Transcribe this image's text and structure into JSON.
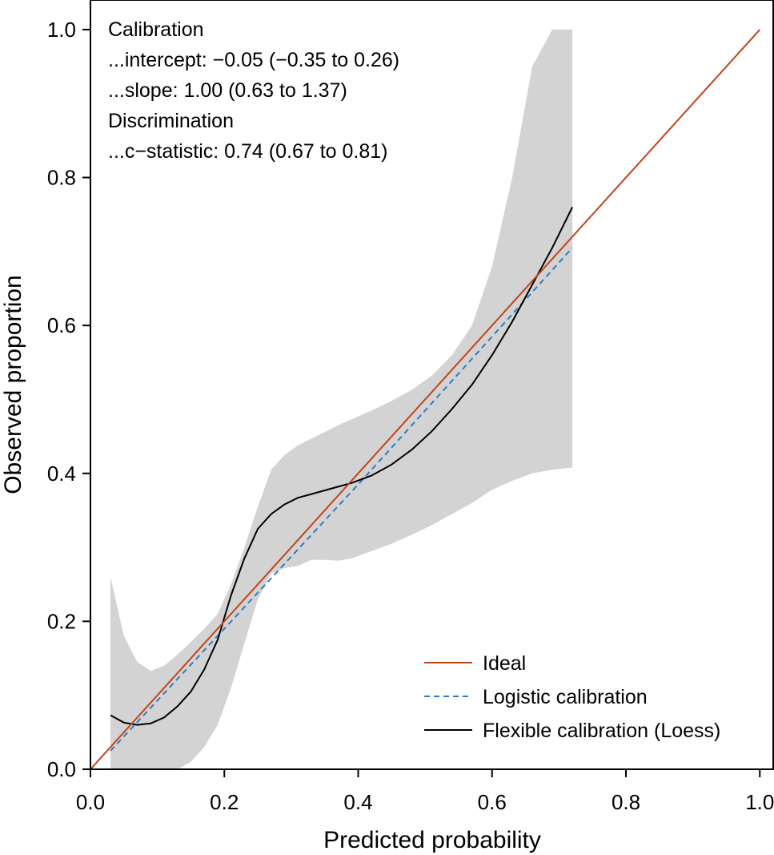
{
  "chart_data": {
    "type": "line",
    "xlabel": "Predicted probability",
    "ylabel": "Observed proportion",
    "xlim": [
      0.0,
      1.02
    ],
    "ylim": [
      0.0,
      1.04
    ],
    "xticks": [
      "0.0",
      "0.2",
      "0.4",
      "0.6",
      "0.8",
      "1.0"
    ],
    "yticks": [
      "0.0",
      "0.2",
      "0.4",
      "0.6",
      "0.8",
      "1.0"
    ],
    "xtick_values": [
      0,
      0.2,
      0.4,
      0.6,
      0.8,
      1.0
    ],
    "ytick_values": [
      0,
      0.2,
      0.4,
      0.6,
      0.8,
      1.0
    ],
    "annotations": [
      "Calibration",
      "...intercept: −0.05 (−0.35 to 0.26)",
      "...slope: 1.00 (0.63 to 1.37)",
      "Discrimination",
      "...c−statistic: 0.74 (0.67 to 0.81)"
    ],
    "legend_placement": "bottom-right",
    "series": [
      {
        "name": "Ideal",
        "color": "#c1441b",
        "style": "solid",
        "x": [
          0.0,
          1.0
        ],
        "y": [
          0.0,
          1.0
        ]
      },
      {
        "name": "Logistic calibration",
        "color": "#2f7bc4",
        "style": "dashed",
        "x": [
          0.03,
          0.2,
          0.4,
          0.6,
          0.72
        ],
        "y": [
          0.025,
          0.19,
          0.385,
          0.585,
          0.705
        ]
      },
      {
        "name": "Flexible calibration (Loess)",
        "color": "#000000",
        "style": "solid",
        "x": [
          0.03,
          0.05,
          0.07,
          0.09,
          0.11,
          0.13,
          0.15,
          0.17,
          0.19,
          0.21,
          0.23,
          0.25,
          0.27,
          0.29,
          0.31,
          0.33,
          0.35,
          0.37,
          0.39,
          0.42,
          0.45,
          0.48,
          0.51,
          0.54,
          0.57,
          0.6,
          0.63,
          0.66,
          0.69,
          0.72
        ],
        "y": [
          0.073,
          0.063,
          0.06,
          0.062,
          0.07,
          0.085,
          0.105,
          0.135,
          0.175,
          0.235,
          0.285,
          0.325,
          0.345,
          0.358,
          0.367,
          0.372,
          0.377,
          0.382,
          0.387,
          0.397,
          0.412,
          0.432,
          0.457,
          0.487,
          0.52,
          0.56,
          0.605,
          0.655,
          0.705,
          0.76
        ]
      }
    ],
    "band": {
      "name": "confidence-band",
      "color": "#d3d3d3",
      "x": [
        0.03,
        0.05,
        0.07,
        0.09,
        0.11,
        0.13,
        0.15,
        0.17,
        0.19,
        0.21,
        0.23,
        0.25,
        0.27,
        0.29,
        0.31,
        0.33,
        0.35,
        0.37,
        0.39,
        0.42,
        0.45,
        0.48,
        0.51,
        0.54,
        0.57,
        0.6,
        0.63,
        0.66,
        0.69,
        0.72
      ],
      "upper": [
        0.26,
        0.18,
        0.145,
        0.133,
        0.14,
        0.155,
        0.172,
        0.19,
        0.21,
        0.25,
        0.3,
        0.355,
        0.405,
        0.425,
        0.438,
        0.447,
        0.456,
        0.465,
        0.473,
        0.485,
        0.498,
        0.513,
        0.532,
        0.56,
        0.6,
        0.68,
        0.8,
        0.95,
        1.0,
        1.0
      ],
      "lower": [
        0.0,
        0.0,
        0.0,
        0.0,
        0.0,
        0.0,
        0.01,
        0.03,
        0.06,
        0.11,
        0.17,
        0.23,
        0.265,
        0.272,
        0.275,
        0.283,
        0.283,
        0.282,
        0.285,
        0.295,
        0.305,
        0.317,
        0.33,
        0.345,
        0.36,
        0.378,
        0.39,
        0.4,
        0.405,
        0.408
      ]
    }
  }
}
